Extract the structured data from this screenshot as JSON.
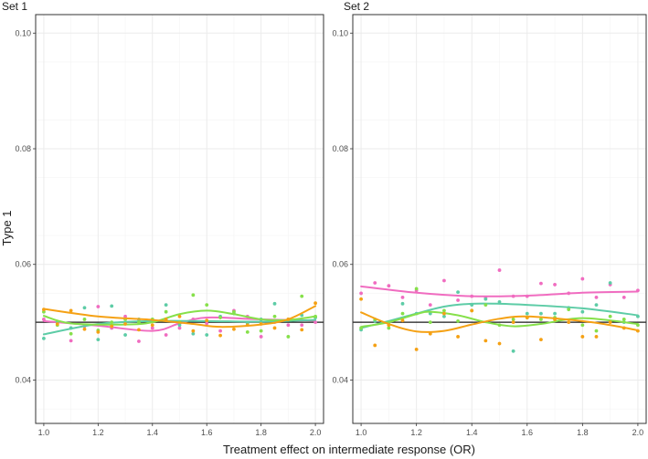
{
  "chart_data": {
    "type": "scatter",
    "xlabel": "Treatment effect on intermediate response (OR)",
    "ylabel": "Type 1",
    "xlim": [
      0.97,
      2.03
    ],
    "ylim": [
      0.0325,
      0.1032
    ],
    "x_ticks": [
      "1.0",
      "1.2",
      "1.4",
      "1.6",
      "1.8",
      "2.0"
    ],
    "y_ticks": [
      "0.04",
      "0.06",
      "0.08",
      "0.10"
    ],
    "reference_line": 0.05,
    "grid": true,
    "legend": "none",
    "colors": {
      "pink": "#f06cc0",
      "teal": "#5dcca6",
      "green": "#86e04a",
      "orange": "#f5a114",
      "reference": "#1a1a1a",
      "panel_border": "#333333",
      "grid": "#ebebeb"
    },
    "panels": [
      {
        "title": "Set 1",
        "series": [
          {
            "color": "pink",
            "x": [
              1.0,
              1.05,
              1.1,
              1.15,
              1.2,
              1.25,
              1.3,
              1.35,
              1.4,
              1.45,
              1.5,
              1.55,
              1.6,
              1.65,
              1.7,
              1.75,
              1.8,
              1.85,
              1.9,
              1.95,
              2.0
            ],
            "y": [
              0.0505,
              0.05,
              0.0468,
              0.0493,
              0.0527,
              0.049,
              0.051,
              0.0467,
              0.049,
              0.0478,
              0.049,
              0.0505,
              0.0498,
              0.0485,
              0.052,
              0.051,
              0.0475,
              0.05,
              0.0495,
              0.0495,
              0.05
            ],
            "smooth": [
              [
                1.0,
                0.0502
              ],
              [
                1.2,
                0.0494
              ],
              [
                1.4,
                0.0485
              ],
              [
                1.5,
                0.0498
              ],
              [
                1.6,
                0.0508
              ],
              [
                1.8,
                0.0505
              ],
              [
                2.0,
                0.0503
              ]
            ]
          },
          {
            "color": "teal",
            "x": [
              1.0,
              1.05,
              1.1,
              1.15,
              1.2,
              1.25,
              1.3,
              1.35,
              1.4,
              1.45,
              1.5,
              1.55,
              1.6,
              1.65,
              1.7,
              1.75,
              1.8,
              1.85,
              1.9,
              1.95,
              2.0
            ],
            "y": [
              0.0472,
              0.05,
              0.049,
              0.0525,
              0.047,
              0.0528,
              0.0478,
              0.0505,
              0.0502,
              0.053,
              0.0495,
              0.048,
              0.0478,
              0.051,
              0.0515,
              0.0498,
              0.0505,
              0.0532,
              0.0505,
              0.0512,
              0.0508
            ],
            "smooth": [
              [
                1.0,
                0.0479
              ],
              [
                1.2,
                0.0497
              ],
              [
                1.4,
                0.0502
              ],
              [
                1.6,
                0.0502
              ],
              [
                1.8,
                0.0501
              ],
              [
                2.0,
                0.0504
              ]
            ]
          },
          {
            "color": "green",
            "x": [
              1.0,
              1.05,
              1.1,
              1.15,
              1.2,
              1.25,
              1.3,
              1.35,
              1.4,
              1.45,
              1.5,
              1.55,
              1.6,
              1.65,
              1.7,
              1.75,
              1.8,
              1.85,
              1.9,
              1.95,
              2.0
            ],
            "y": [
              0.0518,
              0.0495,
              0.048,
              0.0505,
              0.0486,
              0.05,
              0.0505,
              0.05,
              0.0505,
              0.0518,
              0.05,
              0.0547,
              0.053,
              0.0508,
              0.0518,
              0.0483,
              0.0485,
              0.051,
              0.0475,
              0.0545,
              0.051
            ],
            "smooth": [
              [
                1.0,
                0.0511
              ],
              [
                1.1,
                0.0498
              ],
              [
                1.3,
                0.0496
              ],
              [
                1.4,
                0.05
              ],
              [
                1.5,
                0.0514
              ],
              [
                1.6,
                0.052
              ],
              [
                1.7,
                0.0514
              ],
              [
                1.8,
                0.0505
              ],
              [
                1.9,
                0.0504
              ],
              [
                2.0,
                0.051
              ]
            ]
          },
          {
            "color": "orange",
            "x": [
              1.0,
              1.05,
              1.1,
              1.15,
              1.2,
              1.25,
              1.3,
              1.35,
              1.4,
              1.45,
              1.5,
              1.55,
              1.6,
              1.65,
              1.7,
              1.75,
              1.8,
              1.85,
              1.9,
              1.95,
              2.0
            ],
            "y": [
              0.0522,
              0.0497,
              0.052,
              0.0488,
              0.0483,
              0.0493,
              0.0497,
              0.0487,
              0.0495,
              0.0505,
              0.051,
              0.0485,
              0.0503,
              0.0477,
              0.0488,
              0.0495,
              0.0497,
              0.049,
              0.0505,
              0.0487,
              0.0533
            ],
            "smooth": [
              [
                1.0,
                0.0523
              ],
              [
                1.2,
                0.051
              ],
              [
                1.4,
                0.0504
              ],
              [
                1.55,
                0.0497
              ],
              [
                1.65,
                0.0492
              ],
              [
                1.8,
                0.0496
              ],
              [
                1.9,
                0.0505
              ],
              [
                2.0,
                0.0528
              ]
            ]
          }
        ]
      },
      {
        "title": "Set 2",
        "series": [
          {
            "color": "pink",
            "x": [
              1.0,
              1.05,
              1.1,
              1.15,
              1.2,
              1.25,
              1.3,
              1.35,
              1.4,
              1.45,
              1.5,
              1.55,
              1.6,
              1.65,
              1.7,
              1.75,
              1.8,
              1.85,
              1.9,
              1.95,
              2.0
            ],
            "y": [
              0.055,
              0.0568,
              0.0563,
              0.0543,
              0.0555,
              0.053,
              0.0572,
              0.0538,
              0.0545,
              0.0542,
              0.059,
              0.0545,
              0.0545,
              0.0567,
              0.0565,
              0.055,
              0.0575,
              0.0543,
              0.0565,
              0.0543,
              0.0555
            ],
            "smooth": [
              [
                1.0,
                0.0562
              ],
              [
                1.2,
                0.0551
              ],
              [
                1.4,
                0.0545
              ],
              [
                1.6,
                0.0546
              ],
              [
                1.8,
                0.0551
              ],
              [
                2.0,
                0.0553
              ]
            ]
          },
          {
            "color": "teal",
            "x": [
              1.0,
              1.05,
              1.1,
              1.15,
              1.2,
              1.25,
              1.3,
              1.35,
              1.4,
              1.45,
              1.5,
              1.55,
              1.6,
              1.65,
              1.7,
              1.75,
              1.8,
              1.85,
              1.9,
              1.95,
              2.0
            ],
            "y": [
              0.0487,
              0.0502,
              0.05,
              0.0532,
              0.0515,
              0.0515,
              0.051,
              0.0552,
              0.053,
              0.054,
              0.0535,
              0.045,
              0.0515,
              0.0515,
              0.0515,
              0.0525,
              0.0518,
              0.053,
              0.0568,
              0.05,
              0.051
            ],
            "smooth": [
              [
                1.0,
                0.049
              ],
              [
                1.1,
                0.0502
              ],
              [
                1.2,
                0.0515
              ],
              [
                1.3,
                0.0527
              ],
              [
                1.4,
                0.0532
              ],
              [
                1.5,
                0.0532
              ],
              [
                1.6,
                0.053
              ],
              [
                1.8,
                0.0524
              ],
              [
                2.0,
                0.0512
              ]
            ]
          },
          {
            "color": "green",
            "x": [
              1.0,
              1.05,
              1.1,
              1.15,
              1.2,
              1.25,
              1.3,
              1.35,
              1.4,
              1.45,
              1.5,
              1.55,
              1.6,
              1.65,
              1.7,
              1.75,
              1.8,
              1.85,
              1.9,
              1.95,
              2.0
            ],
            "y": [
              0.049,
              0.0505,
              0.049,
              0.0515,
              0.0558,
              0.05,
              0.052,
              0.0502,
              0.052,
              0.053,
              0.0495,
              0.0505,
              0.0508,
              0.0505,
              0.0508,
              0.0522,
              0.0495,
              0.0485,
              0.051,
              0.0505,
              0.0495
            ],
            "smooth": [
              [
                1.0,
                0.0492
              ],
              [
                1.1,
                0.05
              ],
              [
                1.2,
                0.0514
              ],
              [
                1.25,
                0.0518
              ],
              [
                1.35,
                0.0512
              ],
              [
                1.45,
                0.05
              ],
              [
                1.55,
                0.0493
              ],
              [
                1.65,
                0.0497
              ],
              [
                1.8,
                0.0507
              ],
              [
                2.0,
                0.0497
              ]
            ]
          },
          {
            "color": "orange",
            "x": [
              1.0,
              1.05,
              1.1,
              1.15,
              1.2,
              1.25,
              1.3,
              1.35,
              1.4,
              1.45,
              1.5,
              1.55,
              1.6,
              1.65,
              1.7,
              1.75,
              1.8,
              1.85,
              1.9,
              1.95,
              2.0
            ],
            "y": [
              0.054,
              0.046,
              0.0495,
              0.0503,
              0.0453,
              0.048,
              0.0515,
              0.0475,
              0.052,
              0.0468,
              0.0463,
              0.05,
              0.0508,
              0.047,
              0.0505,
              0.05,
              0.0475,
              0.0475,
              0.05,
              0.049,
              0.0485
            ],
            "smooth": [
              [
                1.0,
                0.0517
              ],
              [
                1.1,
                0.0497
              ],
              [
                1.2,
                0.0484
              ],
              [
                1.3,
                0.0485
              ],
              [
                1.4,
                0.0496
              ],
              [
                1.5,
                0.0506
              ],
              [
                1.6,
                0.051
              ],
              [
                1.8,
                0.0502
              ],
              [
                1.9,
                0.0495
              ],
              [
                2.0,
                0.0486
              ]
            ]
          }
        ]
      }
    ]
  }
}
